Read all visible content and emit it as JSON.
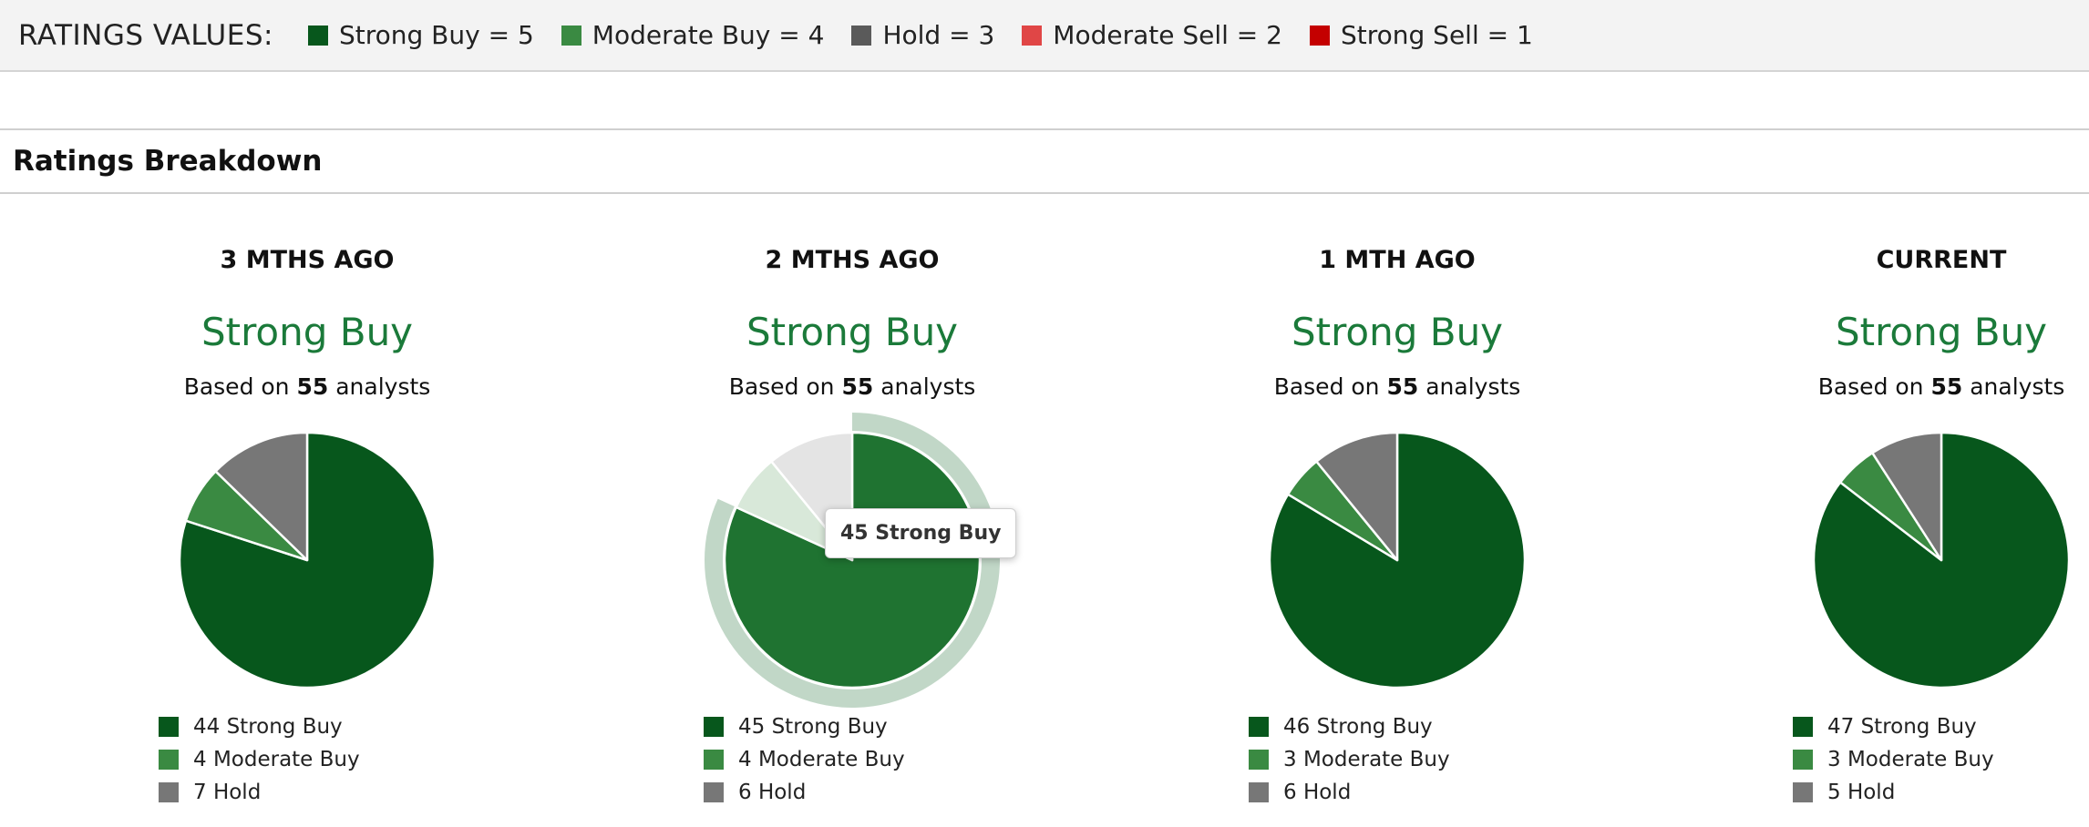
{
  "ratings_legend": {
    "title": "RATINGS VALUES:",
    "items": [
      {
        "label": "Strong Buy = 5",
        "color": "#07571c"
      },
      {
        "label": "Moderate Buy = 4",
        "color": "#3a8a42"
      },
      {
        "label": "Hold = 3",
        "color": "#5a5a5a"
      },
      {
        "label": "Moderate Sell = 2",
        "color": "#e04646"
      },
      {
        "label": "Strong Sell = 1",
        "color": "#c40000"
      }
    ]
  },
  "section": {
    "title": "Ratings Breakdown"
  },
  "chart_data": [
    {
      "type": "pie",
      "title": "3 MTHS AGO",
      "consensus": "Strong Buy",
      "based_on_prefix": "Based on",
      "analyst_count": "55",
      "based_on_suffix": "analysts",
      "slices": [
        {
          "label": "44 Strong Buy",
          "value": 44,
          "color": "#07571c"
        },
        {
          "label": "4 Moderate Buy",
          "value": 4,
          "color": "#3a8a42"
        },
        {
          "label": "7 Hold",
          "value": 7,
          "color": "#777777"
        }
      ]
    },
    {
      "type": "pie",
      "title": "2 MTHS AGO",
      "consensus": "Strong Buy",
      "based_on_prefix": "Based on",
      "analyst_count": "55",
      "based_on_suffix": "analysts",
      "hovered_slice": 0,
      "tooltip": "45 Strong Buy",
      "slices": [
        {
          "label": "45 Strong Buy",
          "value": 45,
          "color": "#07571c"
        },
        {
          "label": "4 Moderate Buy",
          "value": 4,
          "color": "#3a8a42"
        },
        {
          "label": "6 Hold",
          "value": 6,
          "color": "#777777"
        }
      ]
    },
    {
      "type": "pie",
      "title": "1 MTH AGO",
      "consensus": "Strong Buy",
      "based_on_prefix": "Based on",
      "analyst_count": "55",
      "based_on_suffix": "analysts",
      "slices": [
        {
          "label": "46 Strong Buy",
          "value": 46,
          "color": "#07571c"
        },
        {
          "label": "3 Moderate Buy",
          "value": 3,
          "color": "#3a8a42"
        },
        {
          "label": "6 Hold",
          "value": 6,
          "color": "#777777"
        }
      ]
    },
    {
      "type": "pie",
      "title": "CURRENT",
      "consensus": "Strong Buy",
      "based_on_prefix": "Based on",
      "analyst_count": "55",
      "based_on_suffix": "analysts",
      "slices": [
        {
          "label": "47 Strong Buy",
          "value": 47,
          "color": "#07571c"
        },
        {
          "label": "3 Moderate Buy",
          "value": 3,
          "color": "#3a8a42"
        },
        {
          "label": "5 Hold",
          "value": 5,
          "color": "#777777"
        }
      ]
    }
  ]
}
